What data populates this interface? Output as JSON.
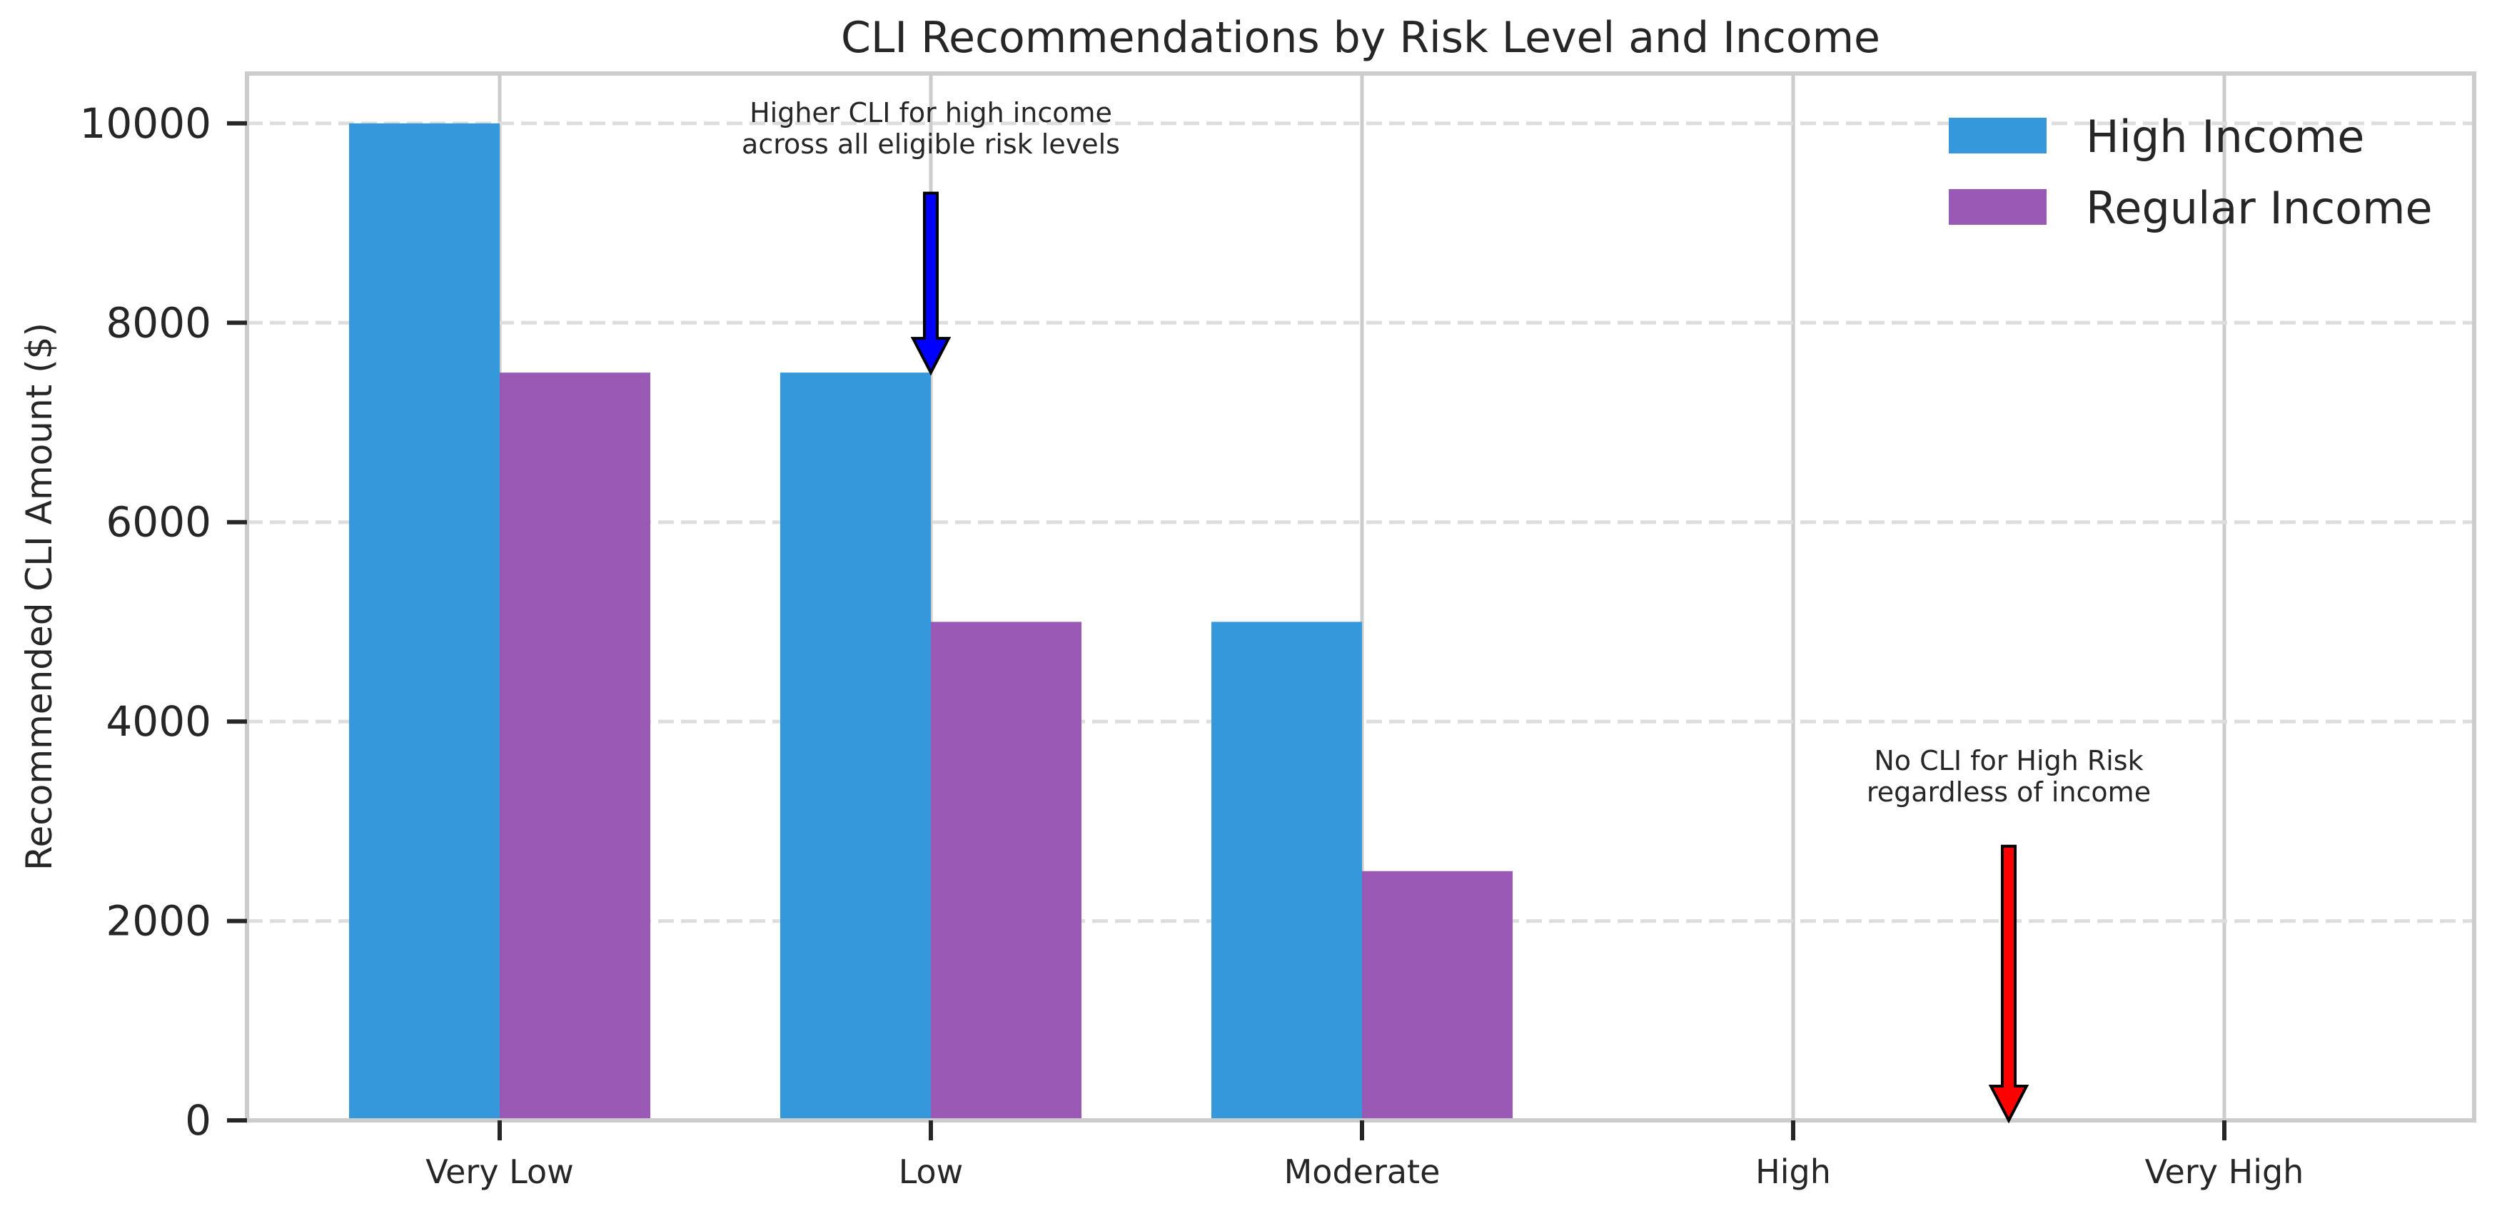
{
  "chart_data": {
    "type": "bar",
    "title": "CLI Recommendations by Risk Level and Income",
    "xlabel": "",
    "ylabel": "Recommended CLI Amount ($)",
    "categories": [
      "Very Low",
      "Low",
      "Moderate",
      "High",
      "Very High"
    ],
    "series": [
      {
        "name": "High Income",
        "values": [
          10000,
          7500,
          5000,
          0,
          0
        ],
        "color": "#3498db"
      },
      {
        "name": "Regular Income",
        "values": [
          7500,
          5000,
          2500,
          0,
          0
        ],
        "color": "#9b59b6"
      }
    ],
    "ylim": [
      0,
      10500
    ],
    "yticks": [
      0,
      2000,
      4000,
      6000,
      8000,
      10000
    ],
    "grid": {
      "horizontal": "dashed",
      "vertical": "solid"
    },
    "legend_position": "top-right",
    "annotations": [
      {
        "lines": [
          "Higher CLI for high income",
          "across all eligible risk levels"
        ],
        "x": 1,
        "y_text": 9700,
        "y_arrow_start": 9300,
        "y_arrow_end": 7500,
        "arrow_color": "#0000ff"
      },
      {
        "lines": [
          "No CLI for High Risk",
          "regardless of income"
        ],
        "x": 3.5,
        "y_text": 3200,
        "y_arrow_start": 2750,
        "y_arrow_end": 0,
        "arrow_color": "#ff0000"
      }
    ]
  }
}
